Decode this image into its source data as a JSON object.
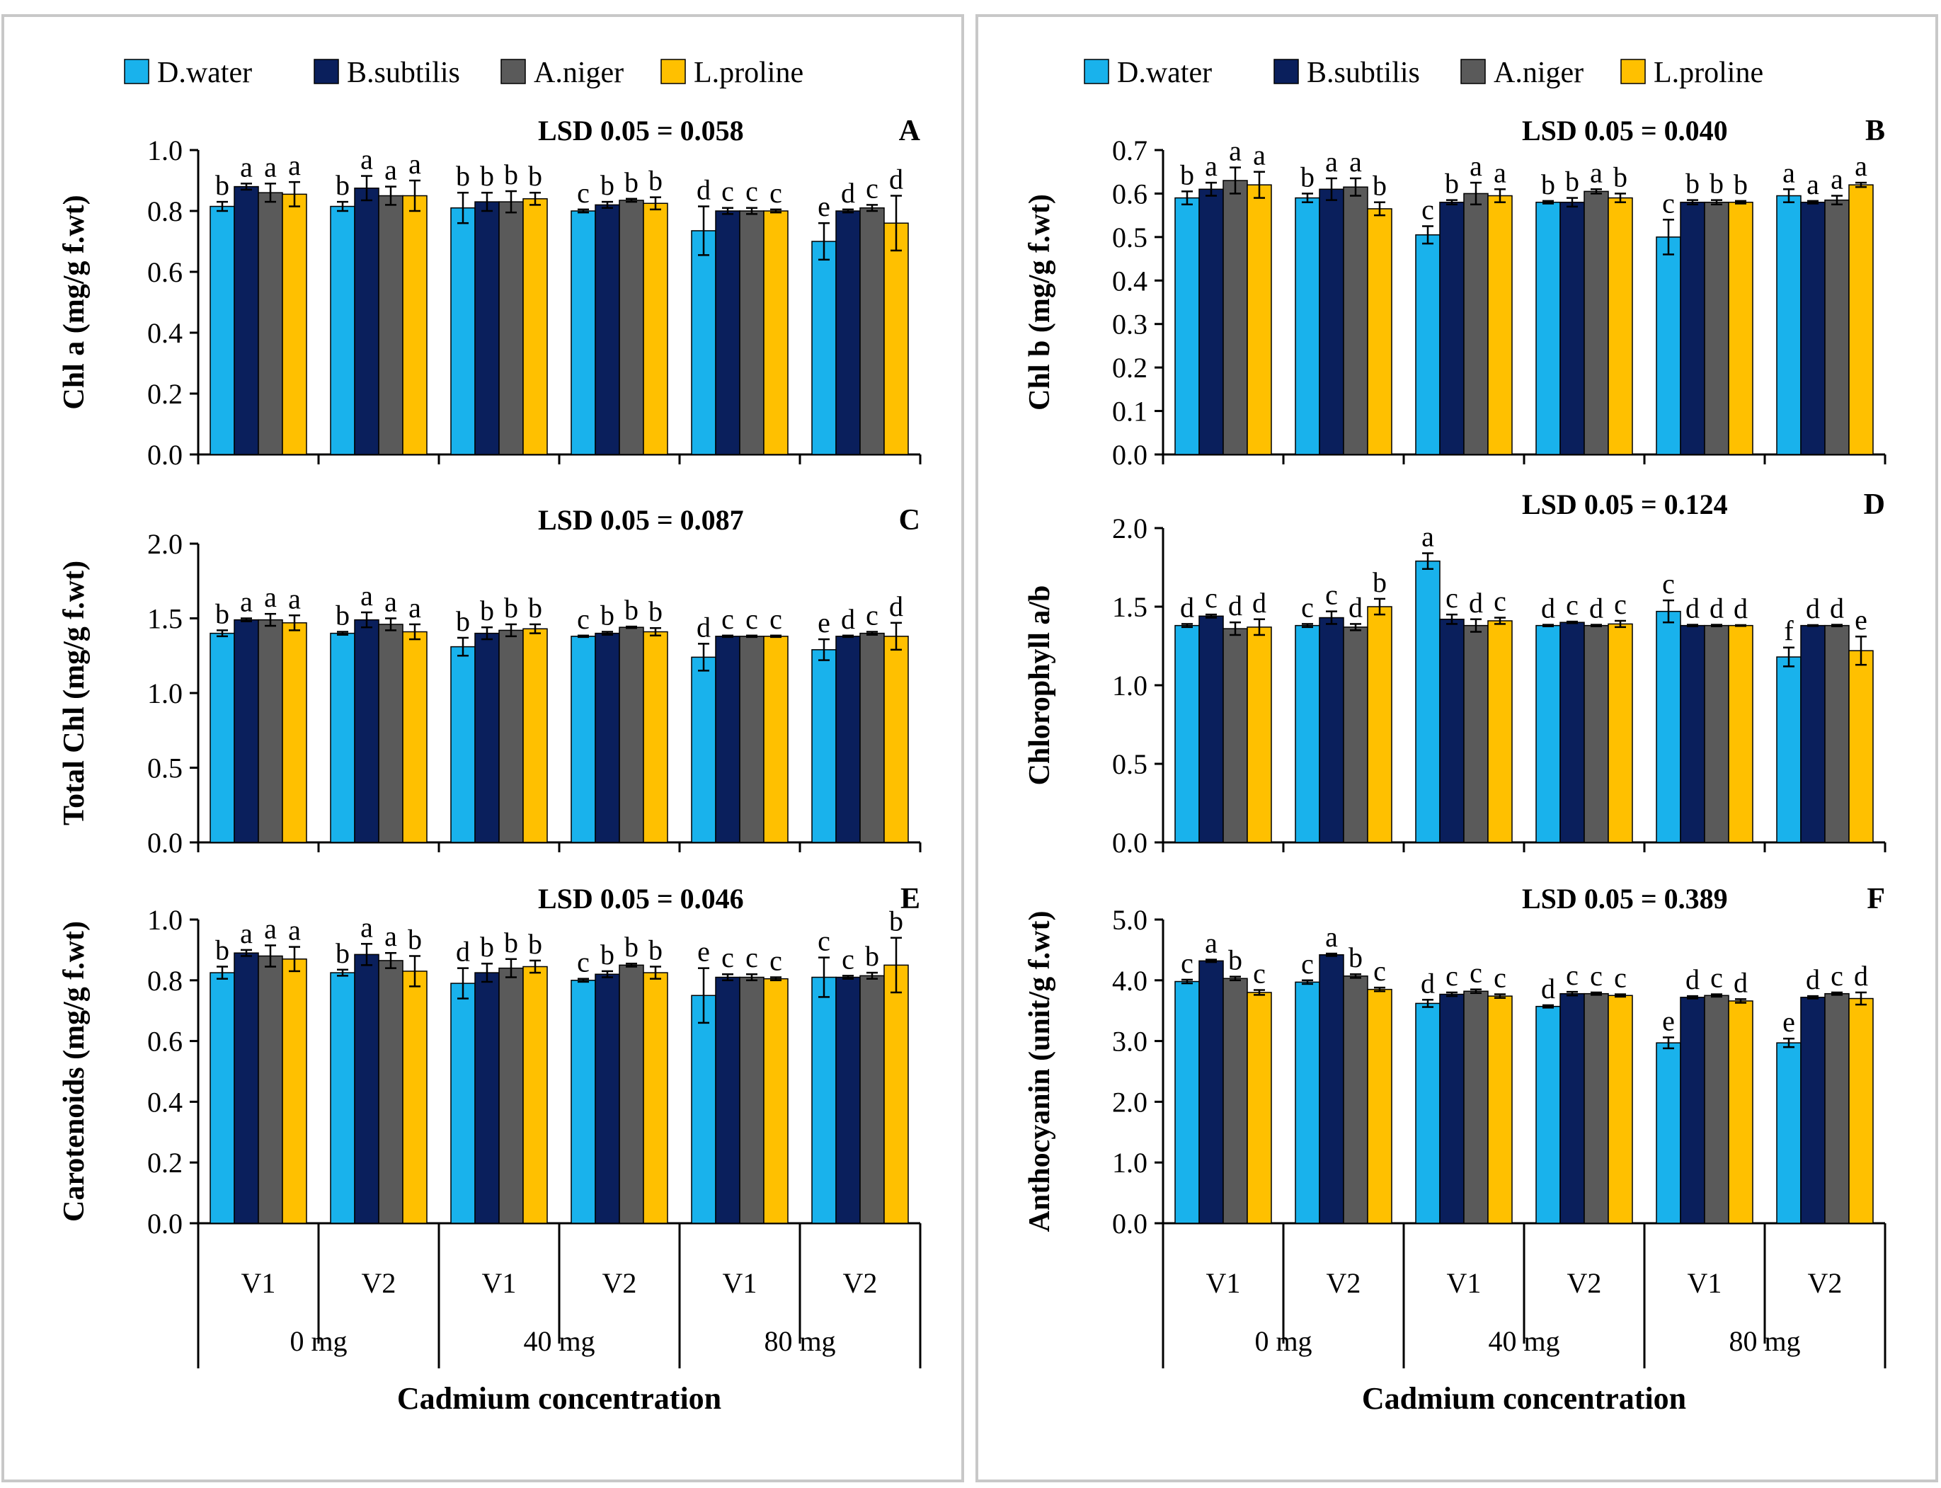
{
  "colors": {
    "D.water": "#19b2ec",
    "B.subtilis": "#0a1f5c",
    "A.niger": "#5a5a5a",
    "L.proline": "#ffc000"
  },
  "x_axis_title": "Cadmium concentration",
  "legend": [
    "D.water",
    "B.subtilis",
    "A.niger",
    "L.proline"
  ],
  "chart_data": [
    {
      "id": "A",
      "type": "bar",
      "panel_label": "A",
      "lsd": "LSD 0.05 = 0.058",
      "ylabel": "Chl a (mg/g f.wt)",
      "ylim": [
        0,
        1.0
      ],
      "yticks": [
        "0.0",
        "0.2",
        "0.4",
        "0.6",
        "0.8",
        "1.0"
      ],
      "groups": [
        "V1",
        "V2",
        "V1",
        "V2",
        "V1",
        "V2"
      ],
      "concentrations": [
        "0 mg",
        "40 mg",
        "80 mg"
      ],
      "series": [
        {
          "name": "D.water",
          "values": [
            0.815,
            0.815,
            0.81,
            0.8,
            0.735,
            0.7
          ],
          "errors": [
            0.015,
            0.015,
            0.05,
            0.005,
            0.08,
            0.06
          ],
          "letters": [
            "b",
            "b",
            "b",
            "c",
            "d",
            "e"
          ]
        },
        {
          "name": "B.subtilis",
          "values": [
            0.88,
            0.875,
            0.83,
            0.82,
            0.8,
            0.8
          ],
          "errors": [
            0.01,
            0.04,
            0.03,
            0.01,
            0.01,
            0.005
          ],
          "letters": [
            "a",
            "a",
            "b",
            "b",
            "c",
            "d"
          ]
        },
        {
          "name": "A.niger",
          "values": [
            0.86,
            0.85,
            0.83,
            0.835,
            0.8,
            0.81
          ],
          "errors": [
            0.03,
            0.03,
            0.035,
            0.005,
            0.01,
            0.01
          ],
          "letters": [
            "a",
            "a",
            "b",
            "b",
            "c",
            "c"
          ]
        },
        {
          "name": "L.proline",
          "values": [
            0.855,
            0.85,
            0.84,
            0.825,
            0.8,
            0.76
          ],
          "errors": [
            0.04,
            0.05,
            0.02,
            0.02,
            0.005,
            0.09
          ],
          "letters": [
            "a",
            "a",
            "b",
            "b",
            "c",
            "d"
          ]
        }
      ]
    },
    {
      "id": "B",
      "type": "bar",
      "panel_label": "B",
      "lsd": "LSD 0.05 = 0.040",
      "ylabel": "Chl b (mg/g f.wt)",
      "ylim": [
        0,
        0.7
      ],
      "yticks": [
        "0.0",
        "0.1",
        "0.2",
        "0.3",
        "0.4",
        "0.5",
        "0.6",
        "0.7"
      ],
      "groups": [
        "V1",
        "V2",
        "V1",
        "V2",
        "V1",
        "V2"
      ],
      "concentrations": [
        "0 mg",
        "40 mg",
        "80 mg"
      ],
      "series": [
        {
          "name": "D.water",
          "values": [
            0.59,
            0.59,
            0.505,
            0.58,
            0.5,
            0.595
          ],
          "errors": [
            0.015,
            0.01,
            0.02,
            0.003,
            0.04,
            0.015
          ],
          "letters": [
            "b",
            "b",
            "c",
            "b",
            "c",
            "a"
          ]
        },
        {
          "name": "B.subtilis",
          "values": [
            0.61,
            0.61,
            0.58,
            0.58,
            0.58,
            0.58
          ],
          "errors": [
            0.015,
            0.025,
            0.005,
            0.01,
            0.005,
            0.003
          ],
          "letters": [
            "a",
            "a",
            "b",
            "b",
            "b",
            "a"
          ]
        },
        {
          "name": "A.niger",
          "values": [
            0.63,
            0.615,
            0.6,
            0.605,
            0.58,
            0.585
          ],
          "errors": [
            0.03,
            0.02,
            0.025,
            0.005,
            0.005,
            0.01
          ],
          "letters": [
            "a",
            "a",
            "a",
            "a",
            "b",
            "a"
          ]
        },
        {
          "name": "L.proline",
          "values": [
            0.62,
            0.565,
            0.595,
            0.59,
            0.58,
            0.62
          ],
          "errors": [
            0.03,
            0.015,
            0.015,
            0.01,
            0.003,
            0.005
          ],
          "letters": [
            "a",
            "b",
            "a",
            "b",
            "b",
            "a"
          ]
        }
      ]
    },
    {
      "id": "C",
      "type": "bar",
      "panel_label": "C",
      "lsd": "LSD 0.05 = 0.087",
      "ylabel": "Total Chl (mg/g f.wt)",
      "ylim": [
        0,
        2.0
      ],
      "yticks": [
        "0.0",
        "0.5",
        "1.0",
        "1.5",
        "2.0"
      ],
      "groups": [
        "V1",
        "V2",
        "V1",
        "V2",
        "V1",
        "V2"
      ],
      "concentrations": [
        "0 mg",
        "40 mg",
        "80 mg"
      ],
      "series": [
        {
          "name": "D.water",
          "values": [
            1.4,
            1.4,
            1.31,
            1.38,
            1.24,
            1.29
          ],
          "errors": [
            0.02,
            0.01,
            0.06,
            0.005,
            0.09,
            0.07
          ],
          "letters": [
            "b",
            "b",
            "b",
            "c",
            "d",
            "e"
          ]
        },
        {
          "name": "B.subtilis",
          "values": [
            1.49,
            1.49,
            1.4,
            1.4,
            1.38,
            1.38
          ],
          "errors": [
            0.01,
            0.05,
            0.04,
            0.01,
            0.005,
            0.005
          ],
          "letters": [
            "a",
            "a",
            "b",
            "b",
            "c",
            "d"
          ]
        },
        {
          "name": "A.niger",
          "values": [
            1.49,
            1.46,
            1.42,
            1.44,
            1.38,
            1.4
          ],
          "errors": [
            0.04,
            0.04,
            0.04,
            0.005,
            0.005,
            0.01
          ],
          "letters": [
            "a",
            "a",
            "b",
            "b",
            "c",
            "c"
          ]
        },
        {
          "name": "L.proline",
          "values": [
            1.47,
            1.41,
            1.43,
            1.41,
            1.38,
            1.38
          ],
          "errors": [
            0.05,
            0.05,
            0.03,
            0.025,
            0.005,
            0.09
          ],
          "letters": [
            "a",
            "a",
            "b",
            "b",
            "c",
            "d"
          ]
        }
      ]
    },
    {
      "id": "D",
      "type": "bar",
      "panel_label": "D",
      "lsd": "LSD 0.05 = 0.124",
      "ylabel": "Chlorophyll a/b",
      "ylim": [
        0,
        2.0
      ],
      "yticks": [
        "0.0",
        "0.5",
        "1.0",
        "1.5",
        "2.0"
      ],
      "groups": [
        "V1",
        "V2",
        "V1",
        "V2",
        "V1",
        "V2"
      ],
      "concentrations": [
        "0 mg",
        "40 mg",
        "80 mg"
      ],
      "series": [
        {
          "name": "D.water",
          "values": [
            1.38,
            1.38,
            1.79,
            1.38,
            1.47,
            1.18
          ],
          "errors": [
            0.01,
            0.01,
            0.05,
            0.005,
            0.07,
            0.06
          ],
          "letters": [
            "d",
            "c",
            "a",
            "d",
            "c",
            "f"
          ]
        },
        {
          "name": "B.subtilis",
          "values": [
            1.44,
            1.43,
            1.42,
            1.4,
            1.38,
            1.38
          ],
          "errors": [
            0.01,
            0.04,
            0.03,
            0.005,
            0.005,
            0.003
          ],
          "letters": [
            "c",
            "c",
            "c",
            "c",
            "d",
            "d"
          ]
        },
        {
          "name": "A.niger",
          "values": [
            1.36,
            1.37,
            1.38,
            1.38,
            1.38,
            1.38
          ],
          "errors": [
            0.04,
            0.02,
            0.04,
            0.005,
            0.005,
            0.005
          ],
          "letters": [
            "d",
            "d",
            "d",
            "d",
            "d",
            "d"
          ]
        },
        {
          "name": "L.proline",
          "values": [
            1.37,
            1.5,
            1.41,
            1.39,
            1.38,
            1.22
          ],
          "errors": [
            0.05,
            0.05,
            0.02,
            0.02,
            0.003,
            0.09
          ],
          "letters": [
            "d",
            "b",
            "c",
            "c",
            "d",
            "e"
          ]
        }
      ]
    },
    {
      "id": "E",
      "type": "bar",
      "panel_label": "E",
      "lsd": "LSD 0.05 = 0.046",
      "ylabel": "Carotenoids (mg/g f.wt)",
      "ylim": [
        0,
        1.0
      ],
      "yticks": [
        "0.0",
        "0.2",
        "0.4",
        "0.6",
        "0.8",
        "1.0"
      ],
      "groups": [
        "V1",
        "V2",
        "V1",
        "V2",
        "V1",
        "V2"
      ],
      "concentrations": [
        "0 mg",
        "40 mg",
        "80 mg"
      ],
      "series": [
        {
          "name": "D.water",
          "values": [
            0.825,
            0.825,
            0.79,
            0.8,
            0.75,
            0.81
          ],
          "errors": [
            0.02,
            0.01,
            0.05,
            0.005,
            0.09,
            0.065
          ],
          "letters": [
            "b",
            "b",
            "d",
            "c",
            "e",
            "c"
          ]
        },
        {
          "name": "B.subtilis",
          "values": [
            0.89,
            0.885,
            0.825,
            0.82,
            0.81,
            0.81
          ],
          "errors": [
            0.01,
            0.035,
            0.03,
            0.01,
            0.01,
            0.005
          ],
          "letters": [
            "a",
            "a",
            "b",
            "b",
            "c",
            "c"
          ]
        },
        {
          "name": "A.niger",
          "values": [
            0.88,
            0.865,
            0.84,
            0.85,
            0.81,
            0.815
          ],
          "errors": [
            0.035,
            0.025,
            0.03,
            0.005,
            0.01,
            0.01
          ],
          "letters": [
            "a",
            "a",
            "b",
            "b",
            "c",
            "b"
          ]
        },
        {
          "name": "L.proline",
          "values": [
            0.87,
            0.83,
            0.845,
            0.825,
            0.805,
            0.85
          ],
          "errors": [
            0.04,
            0.05,
            0.02,
            0.02,
            0.005,
            0.09
          ],
          "letters": [
            "a",
            "b",
            "b",
            "b",
            "c",
            "b"
          ]
        }
      ]
    },
    {
      "id": "F",
      "type": "bar",
      "panel_label": "F",
      "lsd": "LSD 0.05 = 0.389",
      "ylabel": "Anthocyanin (unit/g f.wt)",
      "ylim": [
        0,
        5.0
      ],
      "yticks": [
        "0.0",
        "1.0",
        "2.0",
        "3.0",
        "4.0",
        "5.0"
      ],
      "groups": [
        "V1",
        "V2",
        "V1",
        "V2",
        "V1",
        "V2"
      ],
      "concentrations": [
        "0 mg",
        "40 mg",
        "80 mg"
      ],
      "series": [
        {
          "name": "D.water",
          "values": [
            3.98,
            3.97,
            3.62,
            3.57,
            2.97,
            2.97
          ],
          "errors": [
            0.03,
            0.03,
            0.06,
            0.02,
            0.09,
            0.07
          ],
          "letters": [
            "c",
            "c",
            "d",
            "d",
            "e",
            "e"
          ]
        },
        {
          "name": "B.subtilis",
          "values": [
            4.32,
            4.42,
            3.77,
            3.78,
            3.72,
            3.72
          ],
          "errors": [
            0.02,
            0.02,
            0.03,
            0.03,
            0.02,
            0.02
          ],
          "letters": [
            "a",
            "a",
            "c",
            "c",
            "d",
            "d"
          ]
        },
        {
          "name": "A.niger",
          "values": [
            4.03,
            4.07,
            3.82,
            3.78,
            3.75,
            3.78
          ],
          "errors": [
            0.03,
            0.03,
            0.03,
            0.02,
            0.02,
            0.02
          ],
          "letters": [
            "b",
            "b",
            "c",
            "c",
            "c",
            "c"
          ]
        },
        {
          "name": "L.proline",
          "values": [
            3.8,
            3.85,
            3.74,
            3.75,
            3.66,
            3.7
          ],
          "errors": [
            0.04,
            0.03,
            0.03,
            0.02,
            0.03,
            0.1
          ],
          "letters": [
            "c",
            "c",
            "c",
            "c",
            "d",
            "d"
          ]
        }
      ]
    }
  ]
}
